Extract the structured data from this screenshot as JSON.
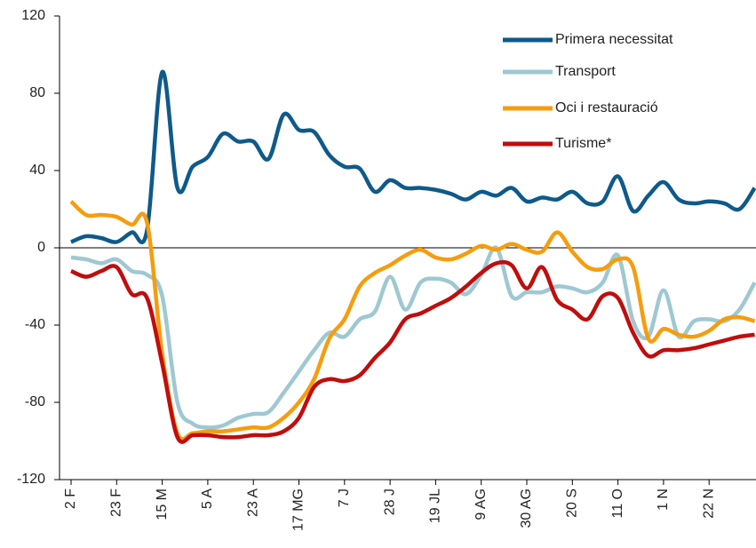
{
  "chart_data": {
    "type": "line",
    "categories": [
      "2 F",
      null,
      null,
      "23 F",
      null,
      null,
      "15 M",
      null,
      null,
      "5 A",
      null,
      null,
      "23 A",
      null,
      null,
      "17 MG",
      null,
      null,
      "7 J",
      null,
      null,
      "28 J",
      null,
      null,
      "19 JL",
      null,
      null,
      "9 AG",
      null,
      null,
      "30 AG",
      null,
      null,
      "20 S",
      null,
      null,
      "11 O",
      null,
      null,
      "1 N",
      null,
      null,
      "22 N",
      null,
      null,
      null
    ],
    "series": [
      {
        "name": "Primera necessitat",
        "color": "#0e5a8a",
        "values": [
          3,
          6,
          5,
          3,
          8,
          9,
          91,
          31,
          42,
          47,
          59,
          55,
          55,
          46,
          69,
          61,
          60,
          48,
          42,
          41,
          29,
          35,
          31,
          31,
          30,
          28,
          25,
          29,
          27,
          31,
          24,
          26,
          25,
          29,
          23,
          24,
          37,
          19,
          27,
          34,
          25,
          23,
          24,
          23,
          20,
          31
        ]
      },
      {
        "name": "Transport",
        "color": "#9ec8d2",
        "values": [
          -5,
          -6,
          -8,
          -6,
          -12,
          -14,
          -25,
          -80,
          -91,
          -93,
          -92,
          -88,
          -86,
          -85,
          -75,
          -64,
          -53,
          -44,
          -46,
          -37,
          -33,
          -15,
          -32,
          -18,
          -16,
          -18,
          -24,
          -14,
          0,
          -25,
          -23,
          -23,
          -20,
          -21,
          -23,
          -18,
          -4,
          -38,
          -46,
          -22,
          -46,
          -38,
          -37,
          -38,
          -32,
          -18
        ]
      },
      {
        "name": "Oci i restauració",
        "color": "#f59d0e",
        "values": [
          24,
          17,
          17,
          16,
          12,
          13,
          -55,
          -96,
          -96,
          -95,
          -95,
          -94,
          -93,
          -93,
          -88,
          -80,
          -68,
          -47,
          -37,
          -20,
          -13,
          -9,
          -4,
          -1,
          -5,
          -6,
          -3,
          1,
          -1,
          2,
          -1,
          -2,
          8,
          -2,
          -10,
          -11,
          -6,
          -10,
          -47,
          -42,
          -45,
          -46,
          -43,
          -37,
          -36,
          -38
        ]
      },
      {
        "name": "Turisme*",
        "color": "#c00d0d",
        "values": [
          -12,
          -15,
          -12,
          -10,
          -24,
          -26,
          -60,
          -98,
          -97,
          -97,
          -98,
          -98,
          -97,
          -97,
          -95,
          -88,
          -72,
          -68,
          -69,
          -66,
          -57,
          -49,
          -37,
          -34,
          -30,
          -26,
          -20,
          -13,
          -8,
          -9,
          -21,
          -10,
          -27,
          -32,
          -37,
          -25,
          -26,
          -44,
          -56,
          -53,
          -53,
          -52,
          -50,
          -48,
          -46,
          -45
        ]
      }
    ],
    "ylim": [
      -120,
      120
    ],
    "yticks": [
      -120,
      -80,
      -40,
      0,
      40,
      80,
      120
    ]
  }
}
